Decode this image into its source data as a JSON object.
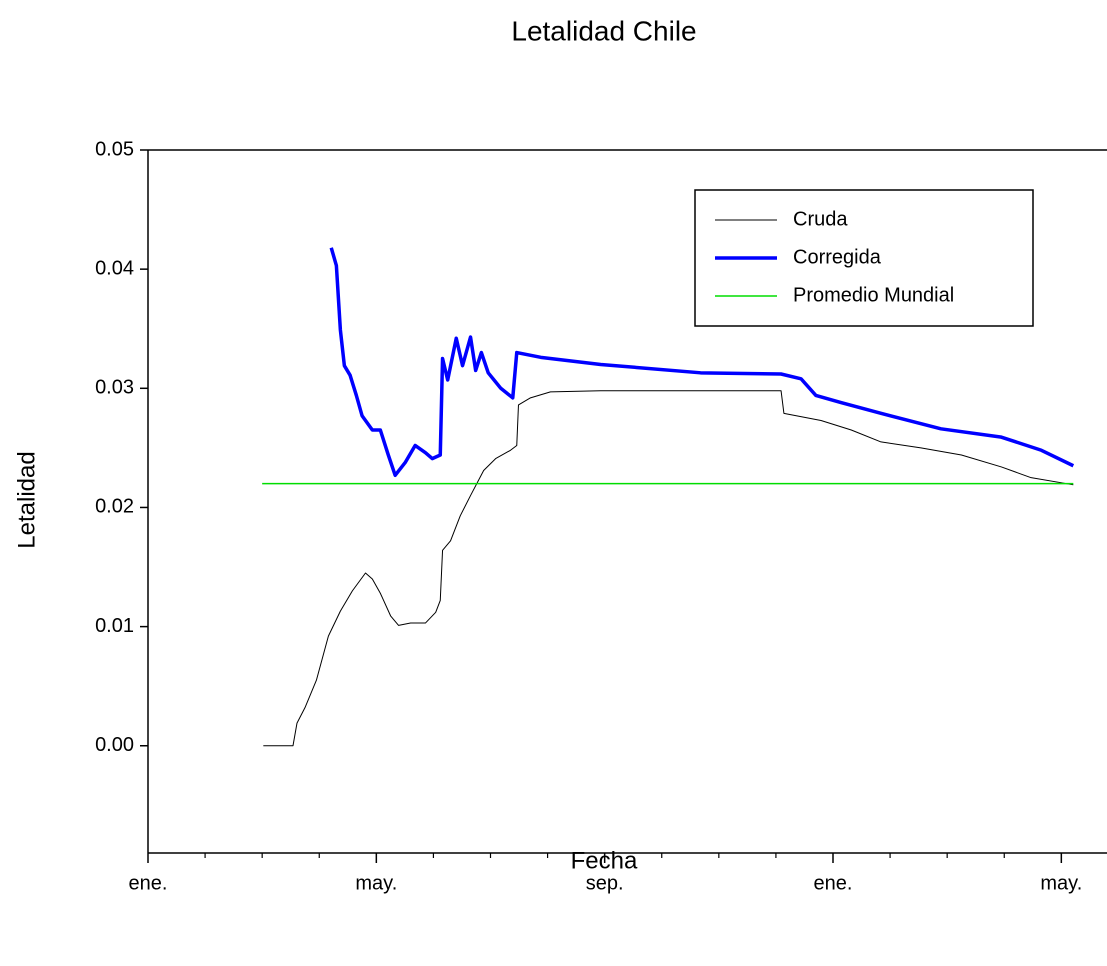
{
  "chart_data": {
    "type": "line",
    "title": "Letalidad Chile",
    "x_label": "Fecha",
    "y_label": "Letalidad",
    "xlim": [
      0,
      16.8
    ],
    "ylim": [
      -0.009,
      0.05
    ],
    "xticks": [
      {
        "value": 0,
        "label": "ene."
      },
      {
        "value": 4,
        "label": "may."
      },
      {
        "value": 8,
        "label": "sep."
      },
      {
        "value": 12,
        "label": "ene."
      },
      {
        "value": 16,
        "label": "may."
      }
    ],
    "xminorticks": [
      1,
      2,
      3,
      5,
      6,
      7,
      9,
      10,
      11,
      13,
      14,
      15
    ],
    "yticks": [
      {
        "value": 0,
        "label": "0.00"
      },
      0.01,
      0.02,
      0.03,
      0.04,
      0.05
    ],
    "legend": "top-right",
    "series": [
      {
        "name": "Cruda",
        "color": "#000000",
        "width": 1,
        "x": [
          2.02,
          2.54,
          2.61,
          2.75,
          2.95,
          3.16,
          3.37,
          3.58,
          3.81,
          3.93,
          4.07,
          4.25,
          4.39,
          4.6,
          4.86,
          5.04,
          5.12,
          5.16,
          5.3,
          5.47,
          5.65,
          5.88,
          6.09,
          6.35,
          6.46,
          6.49,
          6.7,
          7.05,
          7.93,
          9.68,
          11.09,
          11.14,
          11.79,
          12.32,
          12.84,
          13.54,
          14.25,
          14.95,
          15.47,
          16.21
        ],
        "values": [
          0,
          0,
          0.0019,
          0.0032,
          0.0055,
          0.0092,
          0.0113,
          0.013,
          0.0145,
          0.014,
          0.0128,
          0.0109,
          0.0101,
          0.0103,
          0.0103,
          0.0112,
          0.0122,
          0.0164,
          0.0172,
          0.0193,
          0.021,
          0.0231,
          0.0241,
          0.0248,
          0.0252,
          0.0286,
          0.0292,
          0.0297,
          0.0298,
          0.0298,
          0.0298,
          0.0279,
          0.0273,
          0.0265,
          0.0255,
          0.025,
          0.0244,
          0.0234,
          0.0225,
          0.0219
        ]
      },
      {
        "name": "Corregida",
        "color": "#0000ff",
        "width": 3.5,
        "x": [
          3.21,
          3.3,
          3.37,
          3.44,
          3.54,
          3.65,
          3.75,
          3.93,
          4.07,
          4.21,
          4.33,
          4.51,
          4.68,
          4.86,
          4.98,
          5.12,
          5.16,
          5.25,
          5.4,
          5.51,
          5.65,
          5.74,
          5.84,
          5.96,
          6.18,
          6.39,
          6.46,
          6.88,
          7.93,
          9.68,
          11.09,
          11.44,
          11.7,
          12.14,
          12.84,
          13.89,
          14.95,
          15.65,
          16.21
        ],
        "values": [
          0.0418,
          0.0403,
          0.0349,
          0.0319,
          0.0311,
          0.0294,
          0.0277,
          0.0265,
          0.0265,
          0.0244,
          0.0227,
          0.0238,
          0.0252,
          0.0246,
          0.0241,
          0.0244,
          0.0325,
          0.0307,
          0.0342,
          0.0319,
          0.0343,
          0.0315,
          0.033,
          0.0313,
          0.03,
          0.0292,
          0.033,
          0.0326,
          0.032,
          0.0313,
          0.0312,
          0.0308,
          0.0294,
          0.0288,
          0.0279,
          0.0266,
          0.0259,
          0.0248,
          0.0235
        ]
      },
      {
        "name": "Promedio Mundial",
        "color": "#00dd00",
        "width": 1.5,
        "x": [
          2.0,
          16.21
        ],
        "values": [
          0.022,
          0.022
        ]
      }
    ]
  }
}
